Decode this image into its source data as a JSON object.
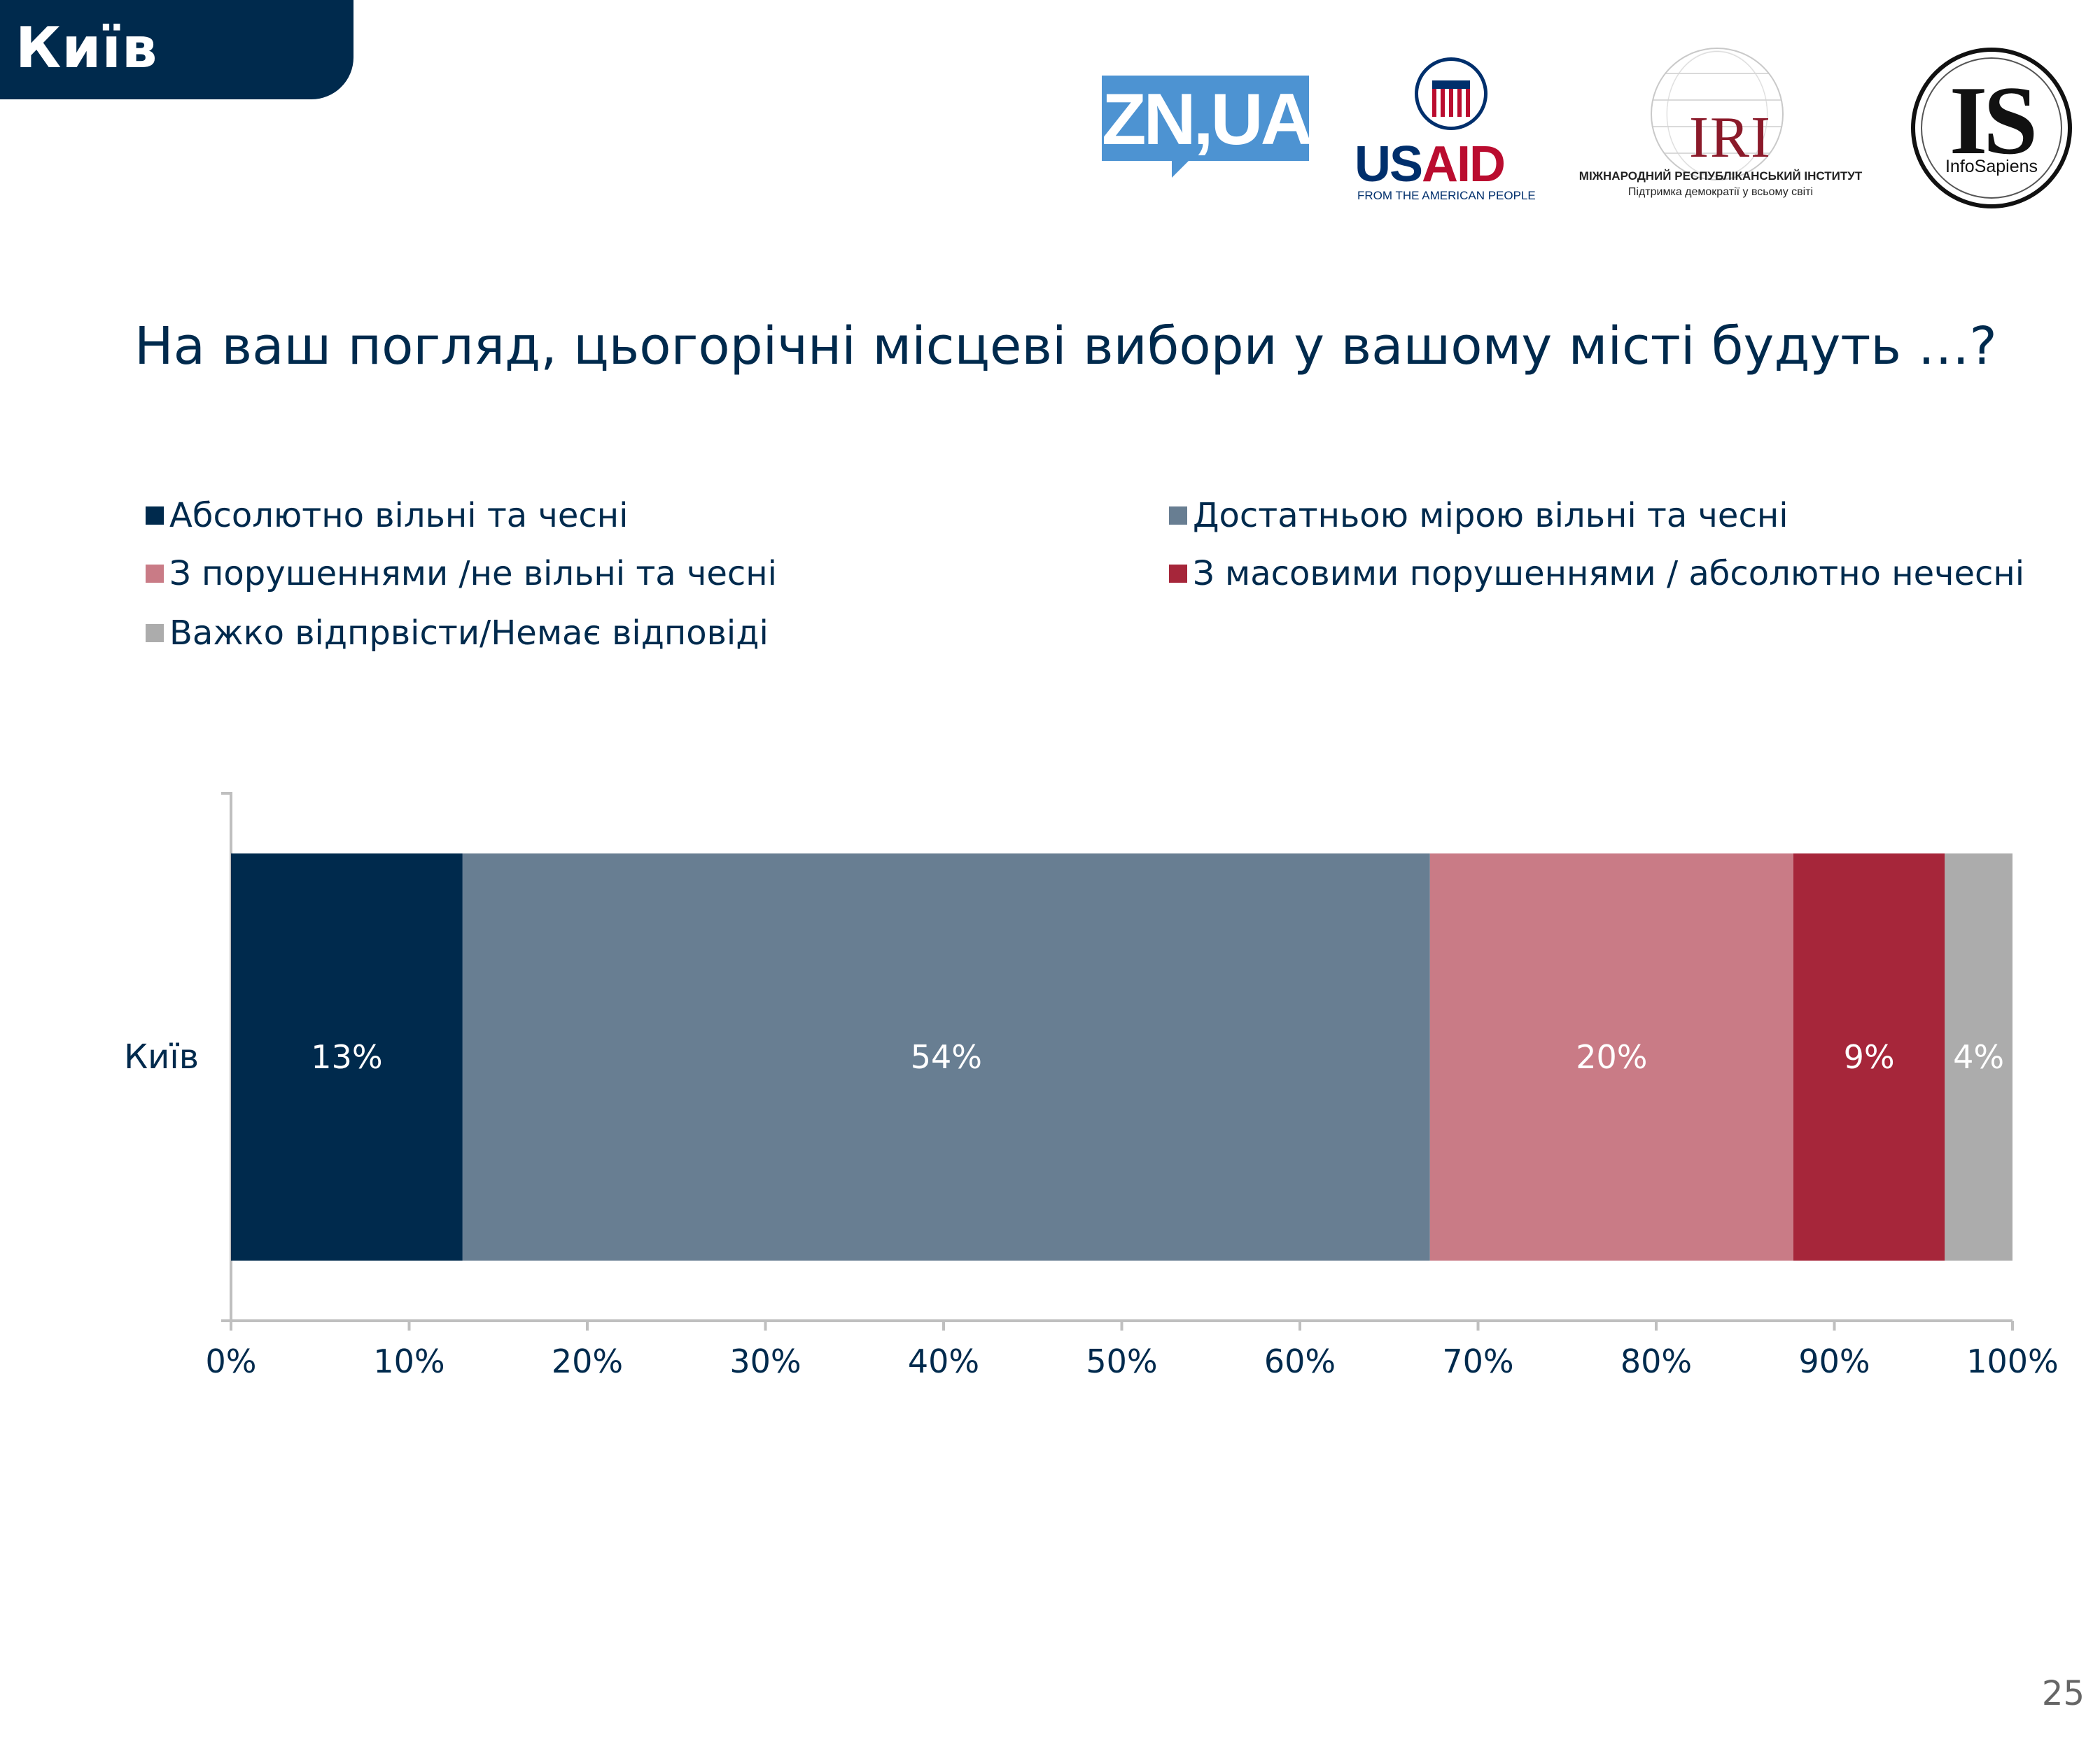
{
  "header": {
    "region_label": "Київ",
    "logos": {
      "zn": "ZN,UA",
      "usaid": {
        "word_us": "US",
        "word_aid": "AID",
        "tagline": "FROM THE AMERICAN PEOPLE"
      },
      "iri": {
        "mark": "IRI",
        "line1": "МІЖНАРОДНИЙ РЕСПУБЛІКАНСЬКИЙ ІНСТИТУТ",
        "line2": "Підтримка демократії у всьому світі"
      },
      "infosapiens": {
        "mark": "IS",
        "name": "InfoSapiens"
      }
    }
  },
  "question": "На ваш погляд, цьогорічні місцеві вибори у вашому місті будуть …?",
  "legend": [
    {
      "label": "Абсолютно вільні та чесні",
      "color": "#002a4d"
    },
    {
      "label": "Достатньою мірою вільні та чесні",
      "color": "#687e92"
    },
    {
      "label": "З порушеннями /не вільні та чесні",
      "color": "#c97b86"
    },
    {
      "label": "З масовими порушеннями / абсолютно нечесні",
      "color": "#a6263a"
    },
    {
      "label": "Важко відпрвісти/Немає відповіді",
      "color": "#acacac"
    }
  ],
  "chart_data": {
    "type": "bar",
    "orientation": "horizontal",
    "stacked": true,
    "categories": [
      "Київ"
    ],
    "series": [
      {
        "name": "Абсолютно вільні та чесні",
        "values": [
          13
        ],
        "labels": [
          "13%"
        ],
        "color": "#002a4d"
      },
      {
        "name": "Достатньою мірою вільні та чесні",
        "values": [
          54.3
        ],
        "labels": [
          "54%"
        ],
        "color": "#687e92"
      },
      {
        "name": "З порушеннями /не вільні та чесні",
        "values": [
          20.4
        ],
        "labels": [
          "20%"
        ],
        "color": "#c97b86"
      },
      {
        "name": "З масовими порушеннями / абсолютно нечесні",
        "values": [
          8.5
        ],
        "labels": [
          "9%"
        ],
        "color": "#a6263a"
      },
      {
        "name": "Важко відпрвісти/Немає відповіді",
        "values": [
          3.8
        ],
        "labels": [
          "4%"
        ],
        "color": "#acacac"
      }
    ],
    "xlim": [
      0,
      100
    ],
    "x_ticks": [
      "0%",
      "10%",
      "20%",
      "30%",
      "40%",
      "50%",
      "60%",
      "70%",
      "80%",
      "90%",
      "100%"
    ],
    "label_color": "#ffffff",
    "axis_label_color": "#002a4d",
    "grid": false,
    "legend_position": "top"
  },
  "page_number": "25"
}
